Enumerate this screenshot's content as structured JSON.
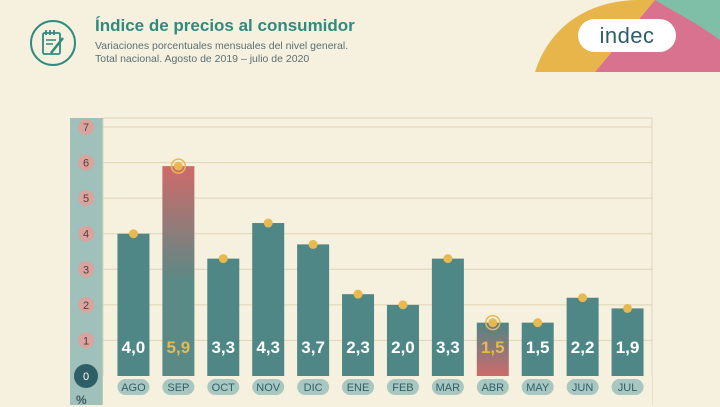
{
  "header": {
    "title": "Índice de precios al consumidor",
    "subtitle_line1": "Variaciones porcentuales mensuales del nivel general.",
    "subtitle_line2": "Total nacional. Agosto de 2019 – julio de 2020",
    "icon": "notepad-pencil-icon"
  },
  "brand": {
    "logo_text": "indec"
  },
  "colors": {
    "bar": "#4f8686",
    "bar_highlight_top": "#cf6a6a",
    "bar_highlight_bottom": "#5a8a86",
    "dot": "#e7b94f",
    "highlight_label": "#e7b94f",
    "axis_bubble": "#d9a49e",
    "axis_zero_bubble": "#2e5f66",
    "gridline": "#ded3b5",
    "plot_bg": "#f6f1df",
    "left_band": "#9fc0bb"
  },
  "chart_data": {
    "type": "bar",
    "categories": [
      "AGO",
      "SEP",
      "OCT",
      "NOV",
      "DIC",
      "ENE",
      "FEB",
      "MAR",
      "ABR",
      "MAY",
      "JUN",
      "JUL"
    ],
    "values": [
      4.0,
      5.9,
      3.3,
      4.3,
      3.7,
      2.3,
      2.0,
      3.3,
      1.5,
      1.5,
      2.2,
      1.9
    ],
    "value_labels": [
      "4,0",
      "5,9",
      "3,3",
      "4,3",
      "3,7",
      "2,3",
      "2,0",
      "3,3",
      "1,5",
      "1,5",
      "2,2",
      "1,9"
    ],
    "highlighted": [
      "SEP",
      "ABR"
    ],
    "y_ticks": [
      "0",
      "1",
      "2",
      "3",
      "4",
      "5",
      "6",
      "7"
    ],
    "y_unit": "%",
    "ylim": [
      0,
      7
    ],
    "grid": true
  }
}
